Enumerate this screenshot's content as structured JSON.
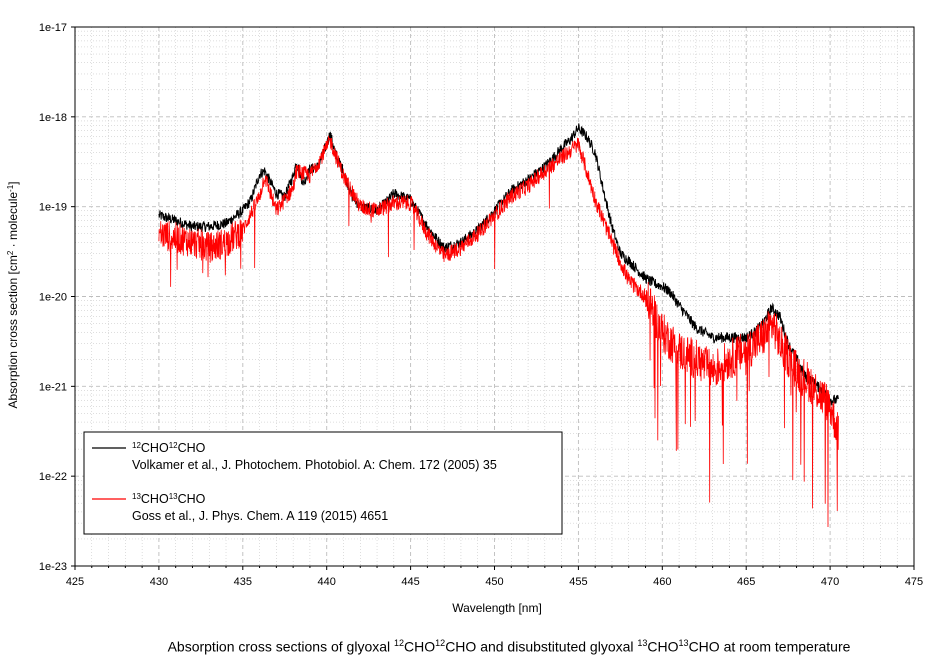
{
  "caption": {
    "parts": [
      {
        "t": "Absorption cross sections of glyoxal ",
        "sup": false
      },
      {
        "t": "12",
        "sup": true
      },
      {
        "t": "CHO",
        "sup": false
      },
      {
        "t": "12",
        "sup": true
      },
      {
        "t": "CHO and disubstituted glyoxal ",
        "sup": false
      },
      {
        "t": "13",
        "sup": true
      },
      {
        "t": "CHO",
        "sup": false
      },
      {
        "t": "13",
        "sup": true
      },
      {
        "t": "CHO at room temperature",
        "sup": false
      }
    ]
  },
  "colors": {
    "series_black": "#000000",
    "series_red": "#ff0000",
    "grid": "#bdbdbd"
  },
  "chart_data": {
    "type": "line",
    "xlabel": "Wavelength [nm]",
    "ylabel_parts": [
      {
        "t": "Absorption cross section [cm",
        "sup": false
      },
      {
        "t": "2",
        "sup": true
      },
      {
        "t": " · molecule",
        "sup": false
      },
      {
        "t": "-1",
        "sup": true
      },
      {
        "t": "]",
        "sup": false
      }
    ],
    "xlim": [
      425,
      475
    ],
    "ylim": [
      1e-23,
      1e-17
    ],
    "yscale": "log",
    "grid": true,
    "legend_position": "bottom-left",
    "x_ticks": [
      "425",
      "430",
      "435",
      "440",
      "445",
      "450",
      "455",
      "460",
      "465",
      "470",
      "475"
    ],
    "y_ticks": [
      "1e-23",
      "1e-22",
      "1e-21",
      "1e-20",
      "1e-19",
      "1e-18",
      "1e-17"
    ],
    "series": [
      {
        "color": "#000000",
        "legend_parts": [
          {
            "t": "12",
            "sup": true
          },
          {
            "t": "CHO",
            "sup": false
          },
          {
            "t": "12",
            "sup": true
          },
          {
            "t": "CHO",
            "sup": false
          }
        ],
        "legend_ref": "Volkamer et al., J. Photochem. Photobiol. A: Chem. 172 (2005) 35",
        "x": [
          430.0,
          431.0,
          432.0,
          433.0,
          434.0,
          435.0,
          435.5,
          436.0,
          436.3,
          437.0,
          437.5,
          438.0,
          438.2,
          438.6,
          439.0,
          439.5,
          440.0,
          440.2,
          440.6,
          441.0,
          441.5,
          442.0,
          443.0,
          443.7,
          444.0,
          445.0,
          446.0,
          446.5,
          447.0,
          448.0,
          449.0,
          450.0,
          451.0,
          452.0,
          453.0,
          453.5,
          454.0,
          454.5,
          455.0,
          455.5,
          456.0,
          456.5,
          457.0,
          457.5,
          458.0,
          458.5,
          459.0,
          459.5,
          460.0,
          460.5,
          461.0,
          461.5,
          462.0,
          463.0,
          464.0,
          465.0,
          465.5,
          466.0,
          466.5,
          467.0,
          467.5,
          468.0,
          468.5,
          469.0,
          469.5,
          470.0,
          470.5
        ],
        "y": [
          8e-20,
          7e-20,
          6e-20,
          6e-20,
          6.5e-20,
          9e-20,
          1.2e-19,
          2.3e-19,
          2.5e-19,
          1.4e-19,
          1.3e-19,
          2.2e-19,
          3.2e-19,
          1.8e-19,
          2.6e-19,
          2.8e-19,
          5e-19,
          6.5e-19,
          3.5e-19,
          2.5e-19,
          1.3e-19,
          1e-19,
          9e-20,
          1.2e-19,
          1.4e-19,
          1.2e-19,
          6e-20,
          4.5e-20,
          3.5e-20,
          4e-20,
          5.5e-20,
          9e-20,
          1.5e-19,
          2e-19,
          2.8e-19,
          3.5e-19,
          4.5e-19,
          5.5e-19,
          7.5e-19,
          6e-19,
          4e-19,
          1.5e-19,
          6e-20,
          3e-20,
          2.5e-20,
          2e-20,
          1.6e-20,
          1.4e-20,
          1.3e-20,
          1.1e-20,
          8e-21,
          6e-21,
          4.5e-21,
          3.5e-21,
          3.5e-21,
          3.5e-21,
          4e-21,
          5e-21,
          7.5e-21,
          6e-21,
          3e-21,
          2e-21,
          1.3e-21,
          1.1e-21,
          9e-22,
          7e-22,
          7e-22
        ]
      },
      {
        "color": "#ff0000",
        "legend_parts": [
          {
            "t": "13",
            "sup": true
          },
          {
            "t": "CHO",
            "sup": false
          },
          {
            "t": "13",
            "sup": true
          },
          {
            "t": "CHO",
            "sup": false
          }
        ],
        "legend_ref": "Goss et al., J. Phys. Chem. A 119 (2015) 4651",
        "x": [
          430.0,
          431.0,
          432.0,
          433.0,
          434.0,
          435.0,
          436.0,
          436.3,
          437.0,
          438.0,
          438.2,
          439.0,
          440.0,
          440.2,
          441.0,
          442.0,
          443.0,
          444.0,
          445.0,
          446.0,
          447.0,
          448.0,
          449.0,
          450.0,
          451.0,
          452.0,
          453.0,
          454.0,
          455.0,
          456.0,
          457.0,
          458.0,
          459.0,
          460.0,
          461.0,
          462.0,
          463.0,
          464.0,
          465.0,
          466.0,
          466.6,
          467.0,
          468.0,
          469.0,
          470.0,
          470.5
        ],
        "y": [
          5e-20,
          4.5e-20,
          4e-20,
          3.5e-20,
          4e-20,
          5.5e-20,
          1.3e-19,
          2.2e-19,
          9e-20,
          1.6e-19,
          2.5e-19,
          2.2e-19,
          4.5e-19,
          5.5e-19,
          2.2e-19,
          1e-19,
          9e-20,
          1.1e-19,
          1.1e-19,
          5e-20,
          2.8e-20,
          3.5e-20,
          5e-20,
          8e-20,
          1.3e-19,
          1.7e-19,
          2.5e-19,
          3.5e-19,
          5e-19,
          1.2e-19,
          4e-20,
          1.5e-20,
          1e-20,
          4e-21,
          2.5e-21,
          2e-21,
          1.5e-21,
          2e-21,
          2.5e-21,
          3.5e-21,
          5e-21,
          3e-21,
          1.5e-21,
          1e-21,
          6e-22,
          3e-22
        ]
      }
    ]
  }
}
